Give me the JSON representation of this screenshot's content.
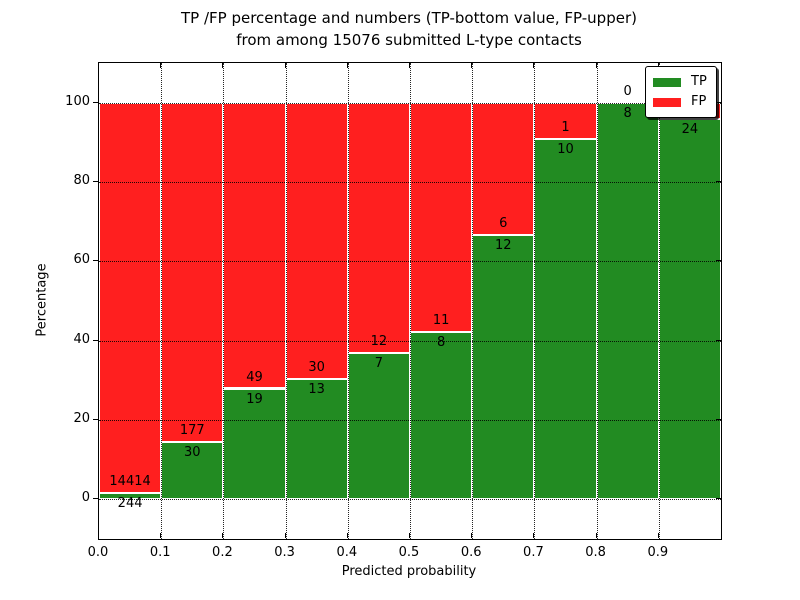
{
  "colors": {
    "tp": "#228b22",
    "fp": "#ff1f1f",
    "grid": "#000000",
    "background": "#ffffff",
    "bar_edge": "#ffffff"
  },
  "chart_data": {
    "type": "bar",
    "stacked": true,
    "title_lines": [
      "TP /FP percentage and numbers (TP-bottom value, FP-upper)",
      "from among 15076 submitted L-type contacts"
    ],
    "total_submitted_contacts": 15076,
    "xlabel": "Predicted probability",
    "ylabel": "Percentage",
    "xlim": [
      0.0,
      1.0
    ],
    "ylim": [
      -10,
      110
    ],
    "x_tick_labels": [
      "0.0",
      "0.1",
      "0.2",
      "0.3",
      "0.4",
      "0.5",
      "0.6",
      "0.7",
      "0.8",
      "0.9"
    ],
    "x_tick_values": [
      0.0,
      0.1,
      0.2,
      0.3,
      0.4,
      0.5,
      0.6,
      0.7,
      0.8,
      0.9
    ],
    "y_tick_values": [
      0,
      20,
      40,
      60,
      80,
      100
    ],
    "grid": "dotted, both axes, on top of bars",
    "legend": {
      "position": "upper right",
      "entries": [
        {
          "label": "TP",
          "color": "#228b22"
        },
        {
          "label": "FP",
          "color": "#ff1f1f"
        }
      ]
    },
    "bins": [
      {
        "range": [
          0.0,
          0.1
        ],
        "tp_count": 244,
        "fp_count": 14414,
        "tp_pct": 1.66,
        "fp_pct": 98.34
      },
      {
        "range": [
          0.1,
          0.2
        ],
        "tp_count": 30,
        "fp_count": 177,
        "tp_pct": 14.49,
        "fp_pct": 85.51
      },
      {
        "range": [
          0.2,
          0.3
        ],
        "tp_count": 19,
        "fp_count": 49,
        "tp_pct": 27.94,
        "fp_pct": 72.06
      },
      {
        "range": [
          0.3,
          0.4
        ],
        "tp_count": 13,
        "fp_count": 30,
        "tp_pct": 30.23,
        "fp_pct": 69.77
      },
      {
        "range": [
          0.4,
          0.5
        ],
        "tp_count": 7,
        "fp_count": 12,
        "tp_pct": 36.84,
        "fp_pct": 63.16
      },
      {
        "range": [
          0.5,
          0.6
        ],
        "tp_count": 8,
        "fp_count": 11,
        "tp_pct": 42.11,
        "fp_pct": 57.89
      },
      {
        "range": [
          0.6,
          0.7
        ],
        "tp_count": 12,
        "fp_count": 6,
        "tp_pct": 66.67,
        "fp_pct": 33.33
      },
      {
        "range": [
          0.7,
          0.8
        ],
        "tp_count": 10,
        "fp_count": 1,
        "tp_pct": 90.91,
        "fp_pct": 9.09
      },
      {
        "range": [
          0.8,
          0.9
        ],
        "tp_count": 8,
        "fp_count": 0,
        "tp_pct": 100.0,
        "fp_pct": 0.0
      },
      {
        "range": [
          0.9,
          1.0
        ],
        "tp_count": 24,
        "fp_count": null,
        "tp_pct": 96.0,
        "fp_pct": 4.0,
        "fp_label_hidden_by_legend": true
      }
    ]
  }
}
